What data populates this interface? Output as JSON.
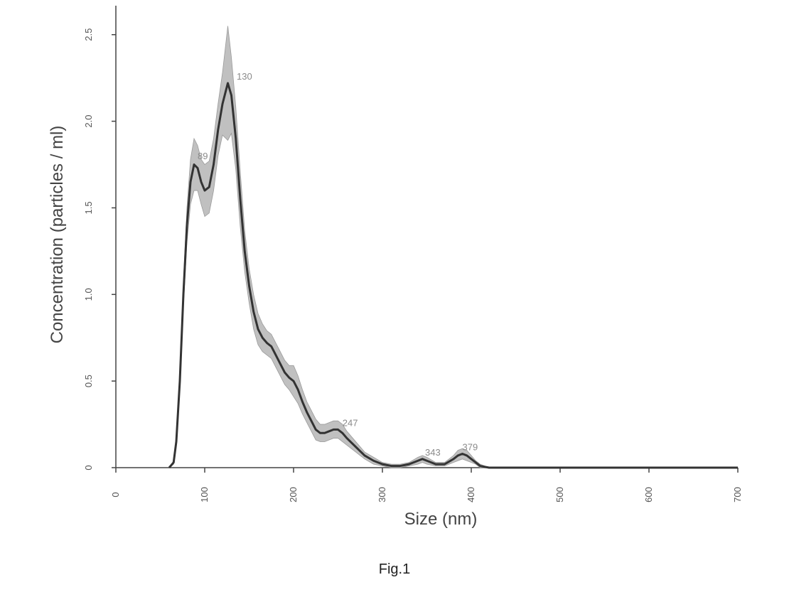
{
  "caption": "Fig.1",
  "chart_data": {
    "type": "line",
    "xlabel": "Size (nm)",
    "ylabel": "Concentration (particles / ml)",
    "xlim": [
      0,
      700
    ],
    "ylim": [
      0,
      2.7
    ],
    "x_ticks": [
      "0",
      "100",
      "200",
      "300",
      "400",
      "500",
      "600",
      "700"
    ],
    "y_ticks": [
      "0",
      "0.5",
      "1.0",
      "1.5",
      "2.0",
      "2.5"
    ],
    "grid": false,
    "series": [
      {
        "x": [
          60,
          65,
          68,
          72,
          76,
          80,
          84,
          88,
          92,
          96,
          100,
          105,
          110,
          115,
          120,
          126,
          130,
          135,
          140,
          145,
          150,
          155,
          160,
          165,
          170,
          175,
          180,
          185,
          190,
          195,
          200,
          205,
          210,
          215,
          220,
          225,
          230,
          235,
          240,
          245,
          250,
          255,
          260,
          270,
          280,
          290,
          300,
          310,
          320,
          330,
          340,
          345,
          350,
          360,
          370,
          380,
          385,
          390,
          395,
          400,
          405,
          410,
          420,
          450,
          500,
          600,
          700
        ],
        "y": [
          0.0,
          0.03,
          0.15,
          0.5,
          1.0,
          1.4,
          1.65,
          1.75,
          1.73,
          1.65,
          1.6,
          1.62,
          1.75,
          1.95,
          2.1,
          2.22,
          2.15,
          1.9,
          1.55,
          1.25,
          1.05,
          0.9,
          0.8,
          0.75,
          0.72,
          0.7,
          0.65,
          0.6,
          0.55,
          0.52,
          0.5,
          0.45,
          0.38,
          0.32,
          0.27,
          0.22,
          0.2,
          0.2,
          0.21,
          0.22,
          0.22,
          0.2,
          0.17,
          0.12,
          0.07,
          0.04,
          0.02,
          0.01,
          0.01,
          0.02,
          0.04,
          0.05,
          0.04,
          0.02,
          0.02,
          0.05,
          0.07,
          0.08,
          0.07,
          0.05,
          0.03,
          0.01,
          0.0,
          0.0,
          0.0,
          0.0,
          0.0
        ],
        "band": [
          0.0,
          0.01,
          0.03,
          0.05,
          0.07,
          0.1,
          0.13,
          0.15,
          0.13,
          0.13,
          0.15,
          0.15,
          0.15,
          0.15,
          0.18,
          0.33,
          0.22,
          0.18,
          0.16,
          0.12,
          0.1,
          0.1,
          0.09,
          0.08,
          0.07,
          0.07,
          0.07,
          0.07,
          0.07,
          0.07,
          0.09,
          0.08,
          0.07,
          0.06,
          0.06,
          0.06,
          0.05,
          0.05,
          0.05,
          0.05,
          0.05,
          0.05,
          0.04,
          0.03,
          0.02,
          0.02,
          0.01,
          0.01,
          0.01,
          0.01,
          0.02,
          0.02,
          0.02,
          0.01,
          0.01,
          0.02,
          0.03,
          0.03,
          0.03,
          0.02,
          0.01,
          0.01,
          0.0,
          0.0,
          0.0,
          0.0,
          0.0
        ],
        "line_color": "#333333",
        "band_color": "#b5b5b5"
      }
    ],
    "peak_labels": [
      {
        "x": 92,
        "y": 1.78,
        "text": "89"
      },
      {
        "x": 136,
        "y": 2.24,
        "text": "130"
      },
      {
        "x": 255,
        "y": 0.24,
        "text": "247"
      },
      {
        "x": 348,
        "y": 0.07,
        "text": "343"
      },
      {
        "x": 390,
        "y": 0.1,
        "text": "379"
      }
    ]
  }
}
